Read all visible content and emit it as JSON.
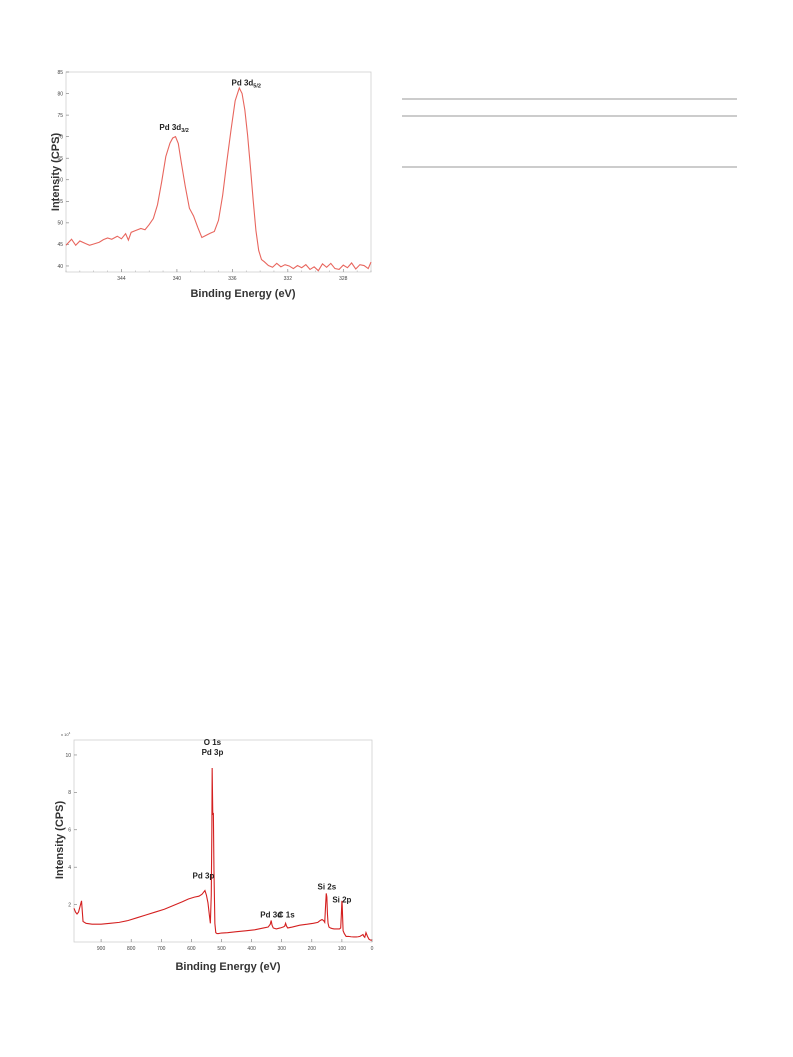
{
  "table_rules": [
    {
      "name": "table-top-rule"
    },
    {
      "name": "table-header-rule"
    },
    {
      "name": "table-bottom-rule"
    }
  ],
  "chart_data": [
    {
      "type": "line",
      "title": "",
      "xlabel": "Binding Energy (eV)",
      "ylabel": "Intensity (CPS)",
      "xlim": [
        348,
        326
      ],
      "ylim": [
        38.6,
        85
      ],
      "x_reversed": true,
      "grid": false,
      "line_color": "#e8665e",
      "x_ticks": [
        "344",
        "340",
        "336",
        "332",
        "328"
      ],
      "x_tick_values": [
        344,
        340,
        336,
        332,
        328
      ],
      "y_ticks": [
        "40",
        "45",
        "50",
        "55",
        "60",
        "65",
        "70",
        "75",
        "80",
        "85"
      ],
      "y_tick_values": [
        40,
        45,
        50,
        55,
        60,
        65,
        70,
        75,
        80,
        85
      ],
      "annotations": [
        {
          "text": "Pd 3d",
          "sub": "3/2",
          "x": 340.2,
          "y": 71.5
        },
        {
          "text": "Pd 3d",
          "sub": "5/2",
          "x": 335.0,
          "y": 81.9
        }
      ],
      "series": [
        {
          "x": [
            348,
            347.6,
            347.3,
            347,
            346.6,
            346.3,
            346,
            345.6,
            345.3,
            345,
            344.7,
            344.3,
            344,
            343.7,
            343.5,
            343.3,
            343,
            342.6,
            342.3,
            342,
            341.7,
            341.4,
            341.1,
            340.8,
            340.5,
            340.3,
            340.1,
            339.9,
            339.7,
            339.4,
            339.1,
            338.8,
            338.5,
            338.2,
            337.9,
            337.6,
            337.3,
            337,
            336.7,
            336.4,
            336.1,
            335.8,
            335.5,
            335.3,
            335.1,
            334.9,
            334.7,
            334.5,
            334.3,
            334.1,
            333.9,
            333.7,
            333.4,
            333.1,
            332.8,
            332.5,
            332.2,
            331.9,
            331.6,
            331.3,
            331,
            330.7,
            330.4,
            330.1,
            329.8,
            329.5,
            329.2,
            328.9,
            328.6,
            328.3,
            328,
            327.7,
            327.4,
            327.1,
            326.8,
            326.5,
            326.2,
            326
          ],
          "y": [
            44.8,
            46.2,
            44.8,
            45.8,
            45.2,
            44.8,
            45.1,
            45.5,
            46.1,
            46.5,
            46.2,
            46.9,
            46.3,
            47.5,
            46.0,
            47.8,
            48.2,
            48.7,
            48.4,
            49.6,
            51.0,
            54.2,
            59.5,
            65.4,
            68.5,
            69.7,
            70.0,
            68.4,
            64.3,
            58.5,
            53.4,
            51.6,
            49.0,
            46.6,
            47.1,
            47.6,
            48.0,
            50.6,
            56.4,
            64.2,
            71.5,
            78.3,
            81.3,
            80.0,
            76.2,
            70.3,
            63.0,
            55.3,
            48.2,
            43.6,
            41.5,
            41.0,
            40.1,
            39.7,
            40.6,
            39.8,
            40.3,
            40.0,
            39.4,
            40.1,
            39.6,
            40.3,
            39.2,
            39.8,
            38.9,
            40.5,
            39.7,
            40.6,
            39.4,
            39.2,
            40.2,
            39.6,
            40.7,
            39.3,
            40.3,
            40.1,
            39.4,
            40.9
          ]
        }
      ]
    },
    {
      "type": "line",
      "title": "",
      "xlabel": "Binding Energy (eV)",
      "ylabel": "Intensity (CPS)",
      "xlim": [
        990,
        0
      ],
      "ylim": [
        0,
        10.8
      ],
      "x_reversed": true,
      "grid": false,
      "line_color": "#d42020",
      "y_multiplier": "x 10",
      "y_multiplier_exp": "4",
      "x_ticks": [
        "900",
        "800",
        "700",
        "600",
        "500",
        "400",
        "300",
        "200",
        "100",
        "0"
      ],
      "x_tick_values": [
        900,
        800,
        700,
        600,
        500,
        400,
        300,
        200,
        100,
        0
      ],
      "y_ticks": [
        "2",
        "4",
        "6",
        "8",
        "10"
      ],
      "y_tick_values": [
        2,
        4,
        6,
        8,
        10
      ],
      "annotations": [
        {
          "lines": [
            "O 1s",
            "Pd 3p"
          ],
          "x": 530,
          "y": 10.0
        },
        {
          "lines": [
            "Pd 3p"
          ],
          "x": 560,
          "y": 3.4
        },
        {
          "lines": [
            "Pd 3d"
          ],
          "x": 335,
          "y": 1.3
        },
        {
          "lines": [
            "C 1s"
          ],
          "x": 285,
          "y": 1.3
        },
        {
          "lines": [
            "Si 2s"
          ],
          "x": 150,
          "y": 2.8
        },
        {
          "lines": [
            "Si 2p"
          ],
          "x": 100,
          "y": 2.1
        }
      ],
      "series": [
        {
          "x": [
            990,
            985,
            980,
            975,
            970,
            965,
            960,
            950,
            930,
            900,
            870,
            840,
            810,
            780,
            750,
            720,
            690,
            660,
            630,
            610,
            590,
            575,
            565,
            560,
            555,
            550,
            545,
            540,
            537,
            534,
            532,
            531,
            529,
            527,
            525,
            522,
            519,
            515,
            510,
            500,
            480,
            450,
            420,
            390,
            360,
            345,
            338,
            335,
            332,
            328,
            318,
            305,
            295,
            290,
            287,
            284,
            280,
            265,
            240,
            215,
            195,
            180,
            172,
            166,
            161,
            157,
            154,
            152,
            150,
            148,
            146,
            143,
            138,
            132,
            126,
            120,
            114,
            108,
            104,
            102,
            100,
            99,
            98,
            96,
            92,
            86,
            78,
            70,
            60,
            52,
            46,
            40,
            35,
            30,
            27,
            24,
            20,
            15,
            10,
            5,
            0
          ],
          "y": [
            1.8,
            1.6,
            1.5,
            1.6,
            1.9,
            2.2,
            1.1,
            1.0,
            0.95,
            0.95,
            1.0,
            1.05,
            1.15,
            1.3,
            1.45,
            1.6,
            1.75,
            1.95,
            2.15,
            2.3,
            2.4,
            2.45,
            2.55,
            2.65,
            2.75,
            2.5,
            2.1,
            1.4,
            1.0,
            2.5,
            6.0,
            9.3,
            6.8,
            6.9,
            3.8,
            1.0,
            0.5,
            0.45,
            0.45,
            0.48,
            0.5,
            0.55,
            0.6,
            0.65,
            0.75,
            0.8,
            0.95,
            1.15,
            0.9,
            0.75,
            0.7,
            0.75,
            0.8,
            0.85,
            1.0,
            0.85,
            0.75,
            0.8,
            0.9,
            0.95,
            1.0,
            1.05,
            1.15,
            1.2,
            1.15,
            1.05,
            2.0,
            2.6,
            2.4,
            1.5,
            1.0,
            0.8,
            0.75,
            0.72,
            0.7,
            0.7,
            0.7,
            0.7,
            0.75,
            1.4,
            2.2,
            2.0,
            1.5,
            0.6,
            0.45,
            0.3,
            0.3,
            0.28,
            0.27,
            0.27,
            0.28,
            0.3,
            0.35,
            0.4,
            0.3,
            0.25,
            0.5,
            0.3,
            0.15,
            0.1,
            0.1
          ]
        }
      ]
    }
  ]
}
